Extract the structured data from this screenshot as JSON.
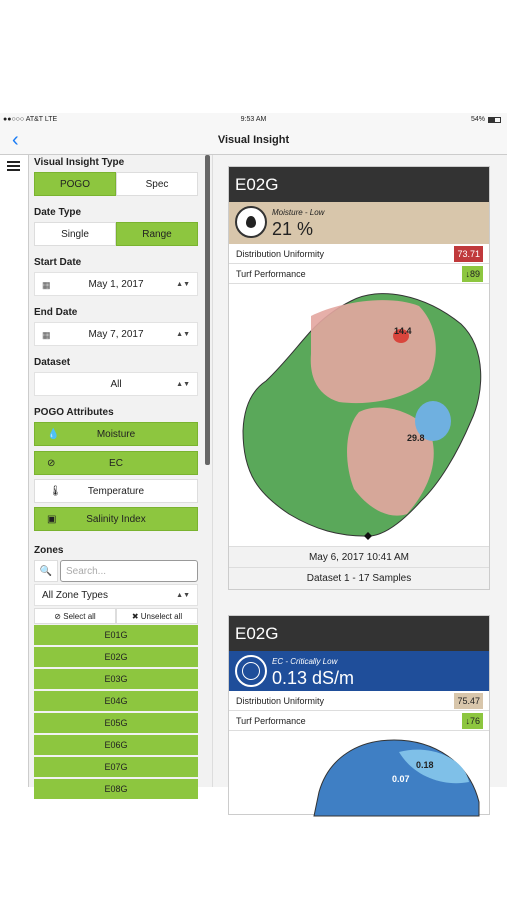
{
  "status_bar": {
    "carrier": "●●○○○ AT&T  LTE",
    "time": "9:53 AM",
    "battery": "54%"
  },
  "nav": {
    "title": "Visual Insight"
  },
  "sidebar": {
    "type_label": "Visual Insight Type",
    "type_options": [
      "POGO",
      "Spec"
    ],
    "date_type_label": "Date Type",
    "date_type_options": [
      "Single",
      "Range"
    ],
    "start_date_label": "Start Date",
    "start_date": "May 1, 2017",
    "end_date_label": "End Date",
    "end_date": "May 7, 2017",
    "dataset_label": "Dataset",
    "dataset": "All",
    "attributes_label": "POGO Attributes",
    "attributes": [
      "Moisture",
      "EC",
      "Temperature",
      "Salinity Index"
    ],
    "zones_label": "Zones",
    "search_placeholder": "Search...",
    "zone_type": "All Zone Types",
    "select_all": "Select all",
    "unselect_all": "Unselect all",
    "zones": [
      "E01G",
      "E02G",
      "E03G",
      "E04G",
      "E05G",
      "E06G",
      "E07G",
      "E08G"
    ]
  },
  "cards": [
    {
      "title": "E02G",
      "status": "Moisture - Low",
      "reading": "21 %",
      "metrics": [
        {
          "label": "Distribution Uniformity",
          "value": "73.71"
        },
        {
          "label": "Turf Performance",
          "value": "89"
        }
      ],
      "map_labels": [
        "14.4",
        "29.8"
      ],
      "timestamp": "May 6, 2017 10:41 AM",
      "dataset": "Dataset 1 - 17 Samples"
    },
    {
      "title": "E02G",
      "status": "EC - Critically Low",
      "reading": "0.13 dS/m",
      "metrics": [
        {
          "label": "Distribution Uniformity",
          "value": "75.47"
        },
        {
          "label": "Turf Performance",
          "value": "76"
        }
      ],
      "map_labels": [
        "0.18",
        "0.07"
      ]
    }
  ]
}
